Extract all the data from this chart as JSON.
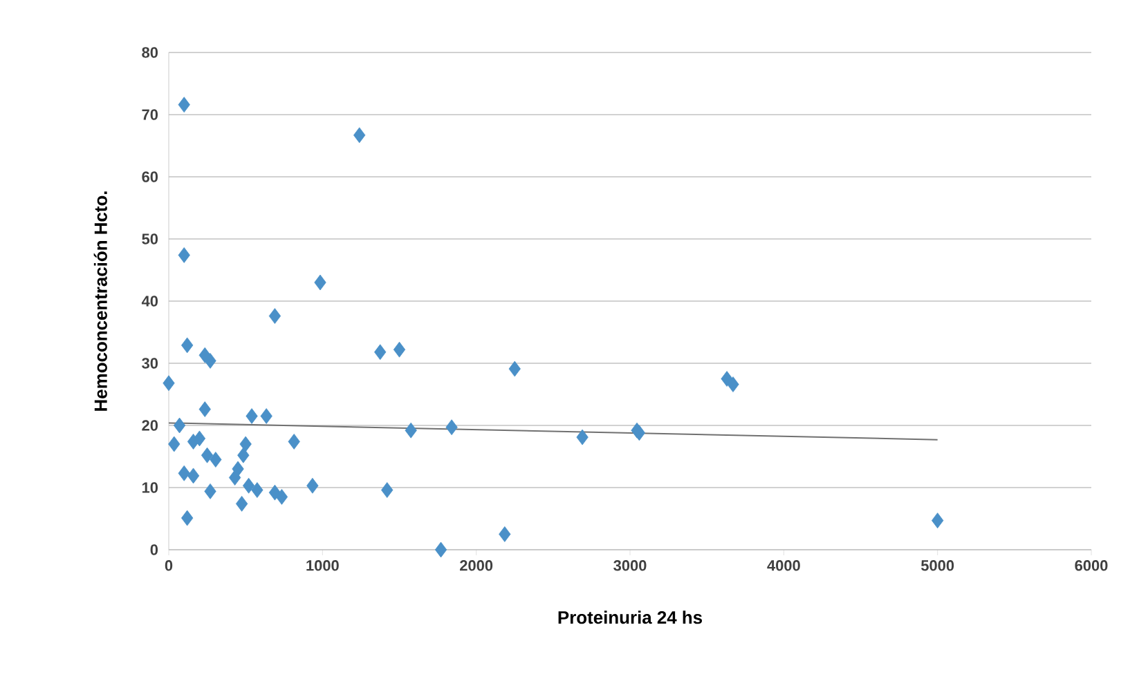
{
  "chart_data": {
    "type": "scatter",
    "xlabel": "Proteinuria 24 hs",
    "ylabel": "Hemoconcentración Hcto.",
    "xlim": [
      0,
      6000
    ],
    "xticks": [
      0,
      1000,
      2000,
      3000,
      4000,
      5000,
      6000
    ],
    "ylim": [
      0,
      80
    ],
    "yticks": [
      0,
      10,
      20,
      30,
      40,
      50,
      60,
      70,
      80
    ],
    "grid": "y",
    "marker": "diamond",
    "series": [
      {
        "color": "#4a90c8",
        "x": [
          0,
          100,
          100,
          120,
          120,
          70,
          35,
          235,
          235,
          270,
          160,
          100,
          160,
          250,
          200,
          305,
          270,
          540,
          635,
          500,
          485,
          450,
          430,
          475,
          575,
          520,
          690,
          815,
          935,
          690,
          735,
          985,
          1240,
          1375,
          1500,
          1575,
          1420,
          1770,
          1840,
          2185,
          2250,
          2690,
          3045,
          3060,
          3630,
          3670,
          5000
        ],
        "values": [
          26.8,
          71.6,
          47.4,
          32.9,
          5.1,
          20,
          17,
          22.6,
          31.3,
          30.4,
          17.4,
          12.3,
          11.9,
          15.2,
          17.9,
          14.5,
          9.4,
          21.5,
          21.5,
          17,
          15.2,
          13,
          11.6,
          7.4,
          9.6,
          10.3,
          37.6,
          17.4,
          10.3,
          9.2,
          8.5,
          43,
          66.7,
          31.8,
          32.2,
          19.2,
          9.6,
          0,
          19.7,
          2.5,
          29.1,
          18.1,
          19.2,
          18.8,
          27.5,
          26.6,
          4.7
        ]
      },
      {
        "type": "line",
        "color": "#707070",
        "marker": "none",
        "line_style": "solid",
        "x": [
          0,
          5000
        ],
        "values": [
          20.4,
          17.7
        ]
      }
    ]
  }
}
